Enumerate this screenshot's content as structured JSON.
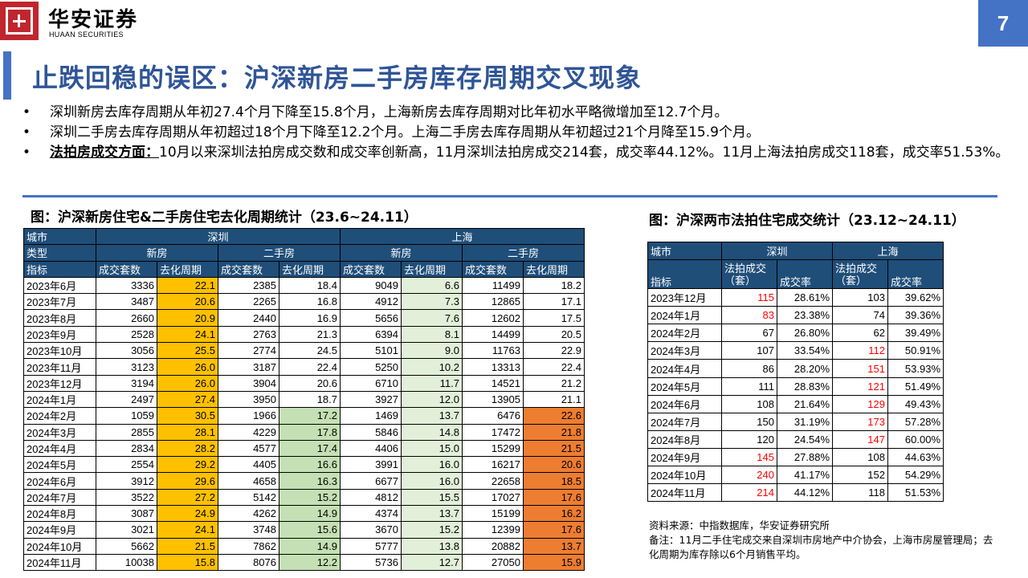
{
  "header": {
    "brand_cn": "华安证券",
    "brand_en": "HUAAN SECURITIES",
    "page_number": "7"
  },
  "title": "止跌回稳的误区：沪深新房二手房库存周期交叉现象",
  "bullets": [
    "深圳新房去库存周期从年初27.4个月下降至15.8个月，上海新房去库存周期对比年初水平略微增加至12.7个月。",
    "深圳二手房去库存周期从年初超过18个月下降至12.2个月。上海二手房去库存周期从年初超过21个月降至15.9个月。"
  ],
  "bullet3": {
    "highlight": "法拍房成交方面：",
    "text": "10月以来深圳法拍房成交数和成交率创新高，11月深圳法拍房成交214套，成交率44.12%。11月上海法拍房成交118套，成交率51.53%。"
  },
  "table1": {
    "caption": "图：沪深新房住宅&二手房住宅去化周期统计（23.6~24.11）",
    "h_city": "城市",
    "h_sz": "深圳",
    "h_sh": "上海",
    "h_type": "类型",
    "h_new": "新房",
    "h_second": "二手房",
    "h_metric": "指标",
    "h_volume": "成交套数",
    "h_cycle": "去化周期",
    "rows": [
      [
        "2023年6月",
        "3336",
        "22.1",
        "2385",
        "18.4",
        "9049",
        "6.6",
        "11499",
        "18.2"
      ],
      [
        "2023年7月",
        "3487",
        "20.6",
        "2265",
        "16.8",
        "4912",
        "7.3",
        "12865",
        "17.1"
      ],
      [
        "2023年8月",
        "2660",
        "20.9",
        "2440",
        "16.9",
        "5656",
        "7.6",
        "12602",
        "17.5"
      ],
      [
        "2023年9月",
        "2528",
        "24.1",
        "2763",
        "21.3",
        "6394",
        "8.1",
        "14499",
        "20.5"
      ],
      [
        "2023年10月",
        "3056",
        "25.5",
        "2774",
        "24.5",
        "5101",
        "9.0",
        "11763",
        "22.9"
      ],
      [
        "2023年11月",
        "3123",
        "26.0",
        "3187",
        "22.4",
        "5250",
        "10.2",
        "13313",
        "22.4"
      ],
      [
        "2023年12月",
        "3194",
        "26.0",
        "3904",
        "20.6",
        "6710",
        "11.7",
        "14521",
        "21.2"
      ],
      [
        "2024年1月",
        "2497",
        "27.4",
        "3950",
        "18.7",
        "3927",
        "12.0",
        "13905",
        "21.1"
      ],
      [
        "2024年2月",
        "1059",
        "30.5",
        "1966",
        "17.2",
        "1469",
        "13.7",
        "6476",
        "22.6"
      ],
      [
        "2024年3月",
        "2855",
        "28.1",
        "4229",
        "17.8",
        "5846",
        "14.8",
        "17472",
        "21.8"
      ],
      [
        "2024年4月",
        "2834",
        "28.2",
        "4577",
        "17.4",
        "4406",
        "15.0",
        "15299",
        "21.5"
      ],
      [
        "2024年5月",
        "2554",
        "29.2",
        "4405",
        "16.6",
        "3991",
        "16.0",
        "16217",
        "20.6"
      ],
      [
        "2024年6月",
        "3912",
        "29.6",
        "4658",
        "16.3",
        "6677",
        "16.0",
        "22658",
        "18.5"
      ],
      [
        "2024年7月",
        "3522",
        "27.2",
        "5142",
        "15.2",
        "4812",
        "15.5",
        "17027",
        "17.6"
      ],
      [
        "2024年8月",
        "3087",
        "24.9",
        "4262",
        "14.9",
        "4374",
        "13.7",
        "15199",
        "16.2"
      ],
      [
        "2024年9月",
        "3021",
        "24.1",
        "3748",
        "15.6",
        "3670",
        "15.2",
        "12399",
        "17.6"
      ],
      [
        "2024年10月",
        "5662",
        "21.5",
        "7862",
        "14.9",
        "5777",
        "13.8",
        "20882",
        "13.7"
      ],
      [
        "2024年11月",
        "10038",
        "15.8",
        "8076",
        "12.2",
        "5736",
        "12.7",
        "27050",
        "15.9"
      ]
    ]
  },
  "table2": {
    "caption": "图：沪深两市法拍住宅成交统计（23.12~24.11）",
    "h_city": "城市",
    "h_sz": "深圳",
    "h_sh": "上海",
    "h_metric": "指标",
    "h_deals": "法拍成交（套）",
    "h_rate": "成交率",
    "rows": [
      [
        "2023年12月",
        "115",
        "28.61%",
        "103",
        "39.62%"
      ],
      [
        "2024年1月",
        "83",
        "23.38%",
        "74",
        "39.36%"
      ],
      [
        "2024年2月",
        "67",
        "26.80%",
        "62",
        "39.49%"
      ],
      [
        "2024年3月",
        "107",
        "33.54%",
        "112",
        "50.91%"
      ],
      [
        "2024年4月",
        "86",
        "28.20%",
        "151",
        "53.93%"
      ],
      [
        "2024年5月",
        "111",
        "28.83%",
        "121",
        "51.49%"
      ],
      [
        "2024年6月",
        "108",
        "21.64%",
        "129",
        "49.43%"
      ],
      [
        "2024年7月",
        "150",
        "31.19%",
        "173",
        "57.28%"
      ],
      [
        "2024年8月",
        "120",
        "24.54%",
        "147",
        "60.00%"
      ],
      [
        "2024年9月",
        "145",
        "27.88%",
        "108",
        "44.63%"
      ],
      [
        "2024年10月",
        "240",
        "41.17%",
        "152",
        "54.29%"
      ],
      [
        "2024年11月",
        "214",
        "44.12%",
        "118",
        "51.53%"
      ]
    ]
  },
  "notes": {
    "source": "资料来源：中指数据库，华安证券研究所",
    "remark": "备注：11月二手住宅成交来自深圳市房地产中介协会，上海市房屋管理局；去化周期为库存除以6个月销售平均。"
  }
}
